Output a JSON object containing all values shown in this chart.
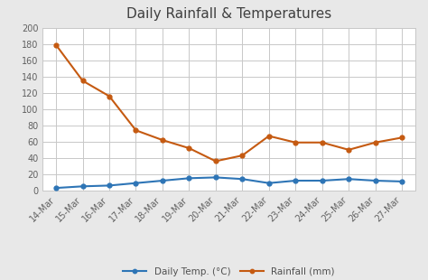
{
  "title": "Daily Rainfall & Temperatures",
  "x_labels": [
    "14-Mar",
    "15-Mar",
    "16-Mar",
    "17-Mar",
    "18-Mar",
    "19-Mar",
    "20-Mar",
    "21-Mar",
    "22-Mar",
    "23-Mar",
    "24-Mar",
    "25-Mar",
    "26-Mar",
    "27-Mar"
  ],
  "temp_values": [
    3,
    5,
    6,
    9,
    12,
    15,
    16,
    14,
    9,
    12,
    12,
    14,
    12,
    11
  ],
  "rainfall_values": [
    179,
    135,
    116,
    74,
    62,
    52,
    36,
    43,
    67,
    59,
    59,
    50,
    59,
    65
  ],
  "temp_color": "#2E75B6",
  "rainfall_color": "#C55A11",
  "temp_label": "Daily Temp. (°C)",
  "rainfall_label": "Rainfall (mm)",
  "ylim": [
    0,
    200
  ],
  "yticks": [
    0,
    20,
    40,
    60,
    80,
    100,
    120,
    140,
    160,
    180,
    200
  ],
  "fig_bg_color": "#e8e8e8",
  "plot_bg_color": "#ffffff",
  "grid_color": "#c8c8c8",
  "title_fontsize": 11,
  "legend_fontsize": 7.5,
  "tick_fontsize": 7,
  "marker": "o",
  "marker_size": 3.5,
  "line_width": 1.5
}
